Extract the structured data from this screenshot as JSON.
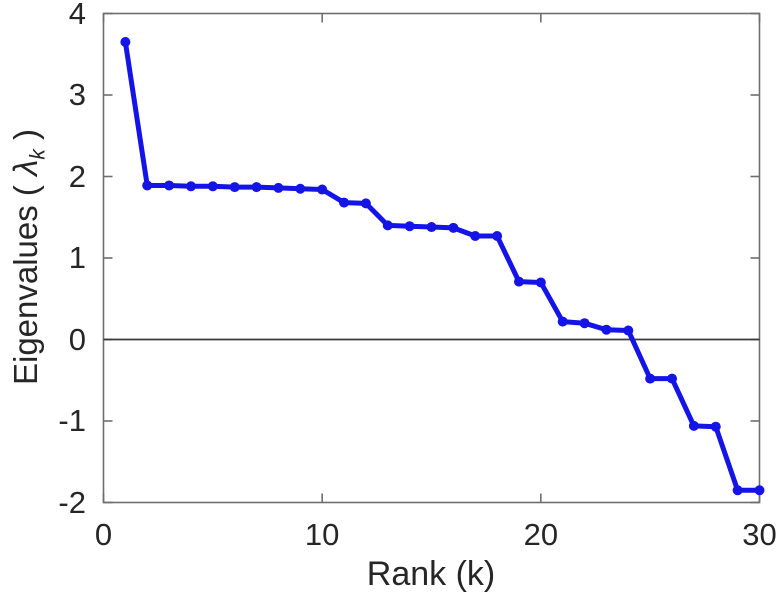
{
  "figure": {
    "xlabel": "Rank (k)",
    "ylabel": {
      "prefix": "Eigenvalues ( ",
      "symbol": "λ",
      "subscript": "k",
      "suffix": " )"
    }
  },
  "chart_data": {
    "type": "line",
    "title": "",
    "xlabel": "Rank (k)",
    "ylabel": "Eigenvalues ( λ_k )",
    "x": [
      1,
      2,
      3,
      4,
      5,
      6,
      7,
      8,
      9,
      10,
      11,
      12,
      13,
      14,
      15,
      16,
      17,
      18,
      19,
      20,
      21,
      22,
      23,
      24,
      25,
      26,
      27,
      28,
      29,
      30
    ],
    "series": [
      {
        "name": "eigenvalues",
        "values": [
          3.65,
          1.89,
          1.89,
          1.88,
          1.88,
          1.87,
          1.87,
          1.86,
          1.85,
          1.84,
          1.68,
          1.67,
          1.4,
          1.39,
          1.38,
          1.37,
          1.27,
          1.27,
          0.71,
          0.7,
          0.22,
          0.2,
          0.12,
          0.11,
          -0.48,
          -0.48,
          -1.06,
          -1.07,
          -1.85,
          -1.85
        ]
      }
    ],
    "xlim": [
      0,
      30
    ],
    "ylim": [
      -2,
      4
    ],
    "xticks": [
      0,
      10,
      20,
      30
    ],
    "yticks": [
      -2,
      -1,
      0,
      1,
      2,
      3,
      4
    ],
    "grid": false,
    "legend": "none",
    "zero_line": true,
    "marker": "circle",
    "line_color": "#1414e6",
    "axis_color": "#6e6e6e",
    "zero_line_color": "#3a3a3a",
    "text_color": "#262626"
  }
}
